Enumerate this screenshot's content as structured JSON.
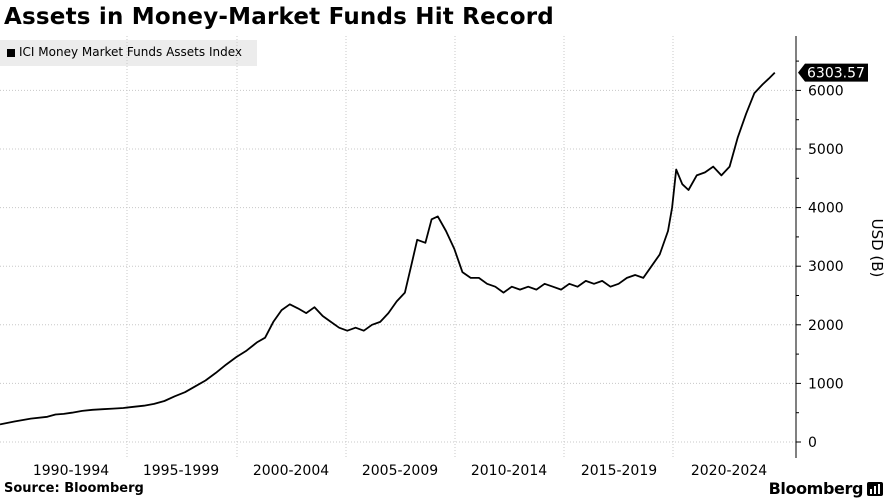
{
  "title": "Assets in Money-Market Funds Hit Record",
  "source": "Source: Bloomberg",
  "brand": "Bloomberg",
  "colors": {
    "line": "#000000",
    "grid": "#c8c8c8",
    "legend_bg": "#ececec"
  },
  "chart_data": {
    "type": "line",
    "title": "Assets in Money-Market Funds Hit Record",
    "ylabel": "USD (B)",
    "xlabel": "",
    "ylim": [
      -100,
      6900
    ],
    "yticks": [
      0,
      1000,
      2000,
      3000,
      4000,
      5000,
      6000
    ],
    "xlim": [
      1987.5,
      2025.5
    ],
    "xtick_labels": [
      "1990-1994",
      "1995-1999",
      "2000-2004",
      "2005-2009",
      "2010-2014",
      "2015-2019",
      "2020-2024"
    ],
    "grid": true,
    "legend_position": "top-left",
    "last_value_label": "6303.57",
    "series": [
      {
        "name": "ICI Money Market Funds Assets Index",
        "x": [
          1987.5,
          1988.2,
          1989.0,
          1989.8,
          1990.2,
          1990.6,
          1991.0,
          1991.5,
          1992.0,
          1992.5,
          1993.0,
          1993.5,
          1994.0,
          1994.5,
          1995.0,
          1995.5,
          1996.0,
          1996.5,
          1997.0,
          1997.5,
          1998.0,
          1998.5,
          1999.0,
          1999.5,
          2000.0,
          2000.4,
          2000.8,
          2001.2,
          2001.6,
          2002.0,
          2002.4,
          2002.8,
          2003.2,
          2003.6,
          2004.0,
          2004.4,
          2004.8,
          2005.2,
          2005.6,
          2006.0,
          2006.4,
          2006.8,
          2007.2,
          2007.5,
          2007.8,
          2008.2,
          2008.5,
          2008.8,
          2009.2,
          2009.6,
          2010.0,
          2010.4,
          2010.8,
          2011.2,
          2011.6,
          2012.0,
          2012.4,
          2012.8,
          2013.2,
          2013.6,
          2014.0,
          2014.4,
          2014.8,
          2015.2,
          2015.6,
          2016.0,
          2016.4,
          2016.8,
          2017.2,
          2017.6,
          2018.0,
          2018.4,
          2018.8,
          2019.2,
          2019.6,
          2020.0,
          2020.2,
          2020.4,
          2020.7,
          2021.0,
          2021.4,
          2021.8,
          2022.2,
          2022.6,
          2023.0,
          2023.4,
          2023.8,
          2024.2,
          2024.6,
          2024.9,
          2025.2
        ],
        "y": [
          300,
          350,
          400,
          430,
          470,
          480,
          500,
          530,
          550,
          560,
          570,
          580,
          600,
          620,
          650,
          700,
          780,
          850,
          950,
          1050,
          1180,
          1320,
          1450,
          1560,
          1700,
          1780,
          2050,
          2250,
          2350,
          2280,
          2200,
          2300,
          2150,
          2050,
          1950,
          1900,
          1950,
          1900,
          2000,
          2050,
          2200,
          2400,
          2550,
          3000,
          3450,
          3400,
          3800,
          3850,
          3600,
          3300,
          2900,
          2800,
          2800,
          2700,
          2650,
          2550,
          2650,
          2600,
          2650,
          2600,
          2700,
          2650,
          2600,
          2700,
          2650,
          2750,
          2700,
          2750,
          2650,
          2700,
          2800,
          2850,
          2800,
          3000,
          3200,
          3600,
          4000,
          4650,
          4400,
          4300,
          4550,
          4600,
          4700,
          4550,
          4700,
          5200,
          5600,
          5950,
          6100,
          6200,
          6303.57
        ]
      }
    ]
  }
}
